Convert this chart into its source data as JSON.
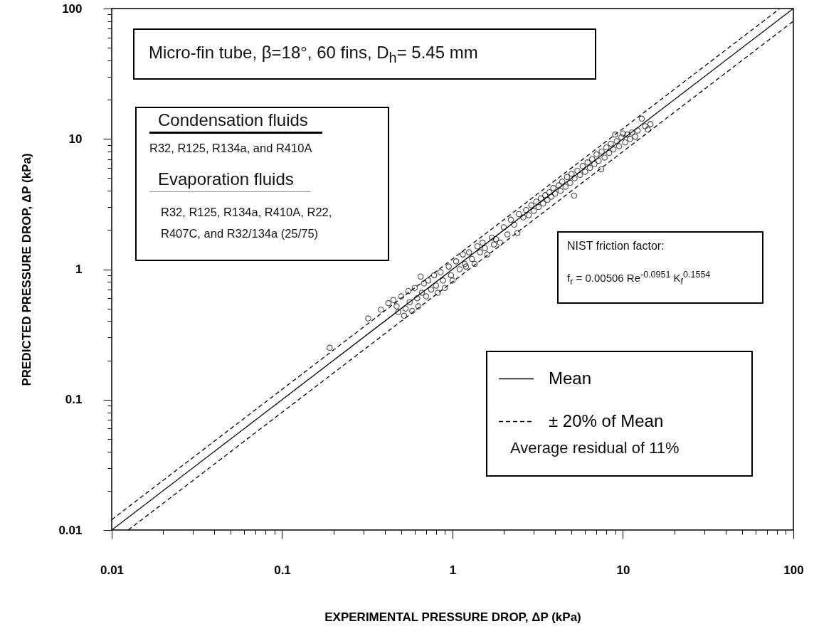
{
  "chart_data": {
    "type": "scatter",
    "xlabel": "EXPERIMENTAL PRESSURE DROP, ΔP (kPa)",
    "ylabel": "PREDICTED PRESSURE DROP, ΔP (kPa)",
    "log": "xy",
    "xlim": [
      0.01,
      100
    ],
    "ylim": [
      0.01,
      100
    ],
    "xticks": [
      0.01,
      {
        "value": 0.02,
        "label": null
      },
      {
        "value": 0.03,
        "label": null
      },
      {
        "value": 0.04,
        "label": null
      },
      {
        "value": 0.05,
        "label": null
      },
      {
        "value": 0.06,
        "label": null
      },
      {
        "value": 0.07,
        "label": null
      },
      {
        "value": 0.08,
        "label": null
      },
      {
        "value": 0.09,
        "label": null
      },
      0.1,
      {
        "value": 0.2,
        "label": null
      },
      {
        "value": 0.3,
        "label": null
      },
      {
        "value": 0.4,
        "label": null
      },
      {
        "value": 0.5,
        "label": null
      },
      {
        "value": 0.6,
        "label": null
      },
      {
        "value": 0.7,
        "label": null
      },
      {
        "value": 0.8,
        "label": null
      },
      {
        "value": 0.9,
        "label": null
      },
      1,
      {
        "value": 2,
        "label": null
      },
      {
        "value": 3,
        "label": null
      },
      {
        "value": 4,
        "label": null
      },
      {
        "value": 5,
        "label": null
      },
      {
        "value": 6,
        "label": null
      },
      {
        "value": 7,
        "label": null
      },
      {
        "value": 8,
        "label": null
      },
      {
        "value": 9,
        "label": null
      },
      10,
      {
        "value": 20,
        "label": null
      },
      {
        "value": 30,
        "label": null
      },
      {
        "value": 40,
        "label": null
      },
      {
        "value": 50,
        "label": null
      },
      {
        "value": 60,
        "label": null
      },
      {
        "value": 70,
        "label": null
      },
      {
        "value": 80,
        "label": null
      },
      {
        "value": 90,
        "label": null
      },
      100
    ],
    "yticks": [
      0.01,
      {
        "value": 0.02,
        "label": null
      },
      {
        "value": 0.03,
        "label": null
      },
      {
        "value": 0.04,
        "label": null
      },
      {
        "value": 0.05,
        "label": null
      },
      {
        "value": 0.06,
        "label": null
      },
      {
        "value": 0.07,
        "label": null
      },
      {
        "value": 0.08,
        "label": null
      },
      {
        "value": 0.09,
        "label": null
      },
      0.1,
      {
        "value": 0.2,
        "label": null
      },
      {
        "value": 0.3,
        "label": null
      },
      {
        "value": 0.4,
        "label": null
      },
      {
        "value": 0.5,
        "label": null
      },
      {
        "value": 0.6,
        "label": null
      },
      {
        "value": 0.7,
        "label": null
      },
      {
        "value": 0.8,
        "label": null
      },
      {
        "value": 0.9,
        "label": null
      },
      1,
      {
        "value": 2,
        "label": null
      },
      {
        "value": 3,
        "label": null
      },
      {
        "value": 4,
        "label": null
      },
      {
        "value": 5,
        "label": null
      },
      {
        "value": 6,
        "label": null
      },
      {
        "value": 7,
        "label": null
      },
      {
        "value": 8,
        "label": null
      },
      {
        "value": 9,
        "label": null
      },
      10,
      {
        "value": 20,
        "label": null
      },
      {
        "value": 30,
        "label": null
      },
      {
        "value": 40,
        "label": null
      },
      {
        "value": 50,
        "label": null
      },
      {
        "value": 60,
        "label": null
      },
      {
        "value": 70,
        "label": null
      },
      {
        "value": 80,
        "label": null
      },
      {
        "value": 90,
        "label": null
      },
      100
    ],
    "legend": "bottom right",
    "annotations": [
      "Micro-fin tube, β=18°, 60 fins, D$_{h}$= 5.45 mm",
      "Condensation fluids",
      "R32, R125, R134a, and R410A",
      "Evaporation fluids",
      "R32, R125, R134a, R410A, R22, R407C, and R32/134a (25/75)",
      "NIST friction factor:",
      "f$_{r}$ = 0.00506 Re$^{-0.0951}$ K$_{f}$$^{0.1554}$",
      "Average residual of 11%"
    ],
    "series": [
      {
        "type": "scatter",
        "color": "#000000",
        "marker": "circle",
        "x": [
          0.19,
          0.32,
          0.38,
          0.42,
          0.45,
          0.47,
          0.48,
          0.5,
          0.52,
          0.53,
          0.55,
          0.56,
          0.58,
          0.6,
          0.62,
          0.63,
          0.65,
          0.66,
          0.68,
          0.7,
          0.72,
          0.75,
          0.78,
          0.8,
          0.82,
          0.85,
          0.88,
          0.9,
          0.95,
          0.98,
          1,
          1.05,
          1.1,
          1.15,
          1.18,
          1.2,
          1.25,
          1.3,
          1.35,
          1.4,
          1.45,
          1.5,
          1.55,
          1.6,
          1.7,
          1.75,
          1.8,
          1.9,
          2,
          2.1,
          2.2,
          2.3,
          2.4,
          2.45,
          2.6,
          2.7,
          2.8,
          2.9,
          3,
          3.1,
          3.2,
          3.3,
          3.4,
          3.5,
          3.6,
          3.7,
          3.8,
          3.9,
          4,
          4.2,
          4.3,
          4.4,
          4.6,
          4.7,
          4.9,
          5,
          5.17,
          5.2,
          5.4,
          5.6,
          5.8,
          6,
          6.2,
          6.4,
          6.6,
          6.8,
          7,
          7.2,
          7.46,
          7.5,
          7.8,
          8,
          8.3,
          8.5,
          8.8,
          9,
          9.2,
          9.5,
          9.8,
          10,
          10.3,
          10.6,
          11,
          11.3,
          11.8,
          12.2,
          12.9,
          13.5,
          14,
          14.5
        ],
        "values": [
          0.25,
          0.42,
          0.49,
          0.55,
          0.58,
          0.52,
          0.47,
          0.62,
          0.44,
          0.5,
          0.68,
          0.56,
          0.48,
          0.72,
          0.6,
          0.52,
          0.88,
          0.66,
          0.78,
          0.62,
          0.82,
          0.7,
          0.9,
          0.75,
          0.66,
          0.95,
          0.82,
          0.72,
          1.05,
          0.9,
          0.82,
          1.15,
          1,
          1.3,
          1.1,
          1.05,
          1.35,
          1.2,
          1.1,
          1.5,
          1.35,
          1.6,
          1.45,
          1.3,
          1.75,
          1.55,
          1.7,
          1.6,
          2.1,
          1.85,
          2.4,
          2.2,
          1.9,
          2.65,
          2.5,
          2.85,
          2.6,
          3.1,
          2.8,
          3.3,
          3,
          3.5,
          3.2,
          3.7,
          3.4,
          3.9,
          3.6,
          4.2,
          3.8,
          4.4,
          4,
          4.7,
          4.3,
          5.1,
          4.6,
          5.4,
          3.67,
          5,
          5.7,
          5.3,
          6.2,
          5.6,
          6.6,
          6,
          7,
          6.4,
          7.6,
          6.8,
          5.85,
          8,
          7.2,
          8.6,
          7.8,
          9.2,
          8.3,
          10.8,
          9.6,
          8.8,
          10.3,
          11,
          9.4,
          10.8,
          10,
          11.2,
          10.4,
          11.6,
          14.3,
          12.5,
          11.8,
          13
        ]
      },
      {
        "type": "line",
        "name": "Mean",
        "color": "#000000",
        "line_style": "solid",
        "x": [
          0.01,
          100
        ],
        "values": [
          0.01,
          100
        ]
      },
      {
        "type": "line",
        "name": "± 20% of Mean",
        "color": "#000000",
        "line_style": "dashed",
        "x": [
          0.01,
          83.33
        ],
        "values": [
          0.012,
          100
        ]
      },
      {
        "type": "line",
        "color": "#000000",
        "line_style": "dashed",
        "x": [
          0.0125,
          100
        ],
        "values": [
          0.01,
          80
        ]
      }
    ]
  }
}
